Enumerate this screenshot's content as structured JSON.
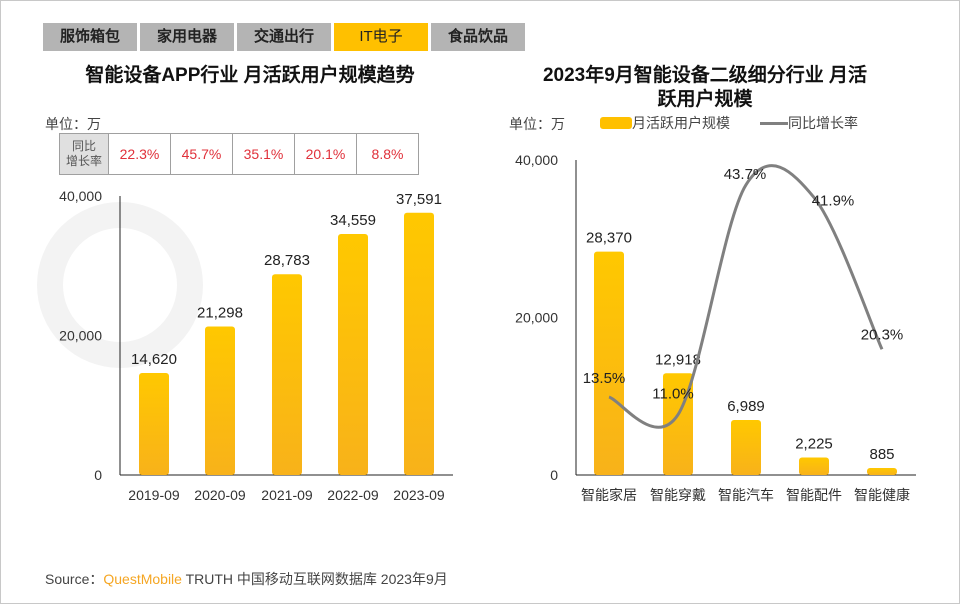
{
  "tabs": [
    {
      "label": "服饰箱包",
      "active": false
    },
    {
      "label": "家用电器",
      "active": false
    },
    {
      "label": "交通出行",
      "active": false
    },
    {
      "label": "IT电子",
      "active": true
    },
    {
      "label": "食品饮品",
      "active": false
    }
  ],
  "watermark": "QUESTMOBILE",
  "colors": {
    "bar": "#ffc000",
    "line": "#808080",
    "active_tab": "#ffc000",
    "yoy_text": "#e0303a",
    "brand": "#f5a623"
  },
  "source": {
    "prefix": "Source：",
    "brand": "QuestMobile",
    "rest": " TRUTH 中国移动互联网数据库 2023年9月"
  },
  "chart_data": [
    {
      "type": "bar",
      "title": "智能设备APP行业 月活跃用户规模趋势",
      "unit": "单位：万",
      "categories": [
        "2019-09",
        "2020-09",
        "2021-09",
        "2022-09",
        "2023-09"
      ],
      "values": [
        14620,
        21298,
        28783,
        34559,
        37591
      ],
      "value_labels": [
        "14,620",
        "21,298",
        "28,783",
        "34,559",
        "37,591"
      ],
      "ylim": [
        0,
        40000
      ],
      "yticks": [
        "0",
        "20,000",
        "40,000"
      ],
      "yoy_table": {
        "header": "同比增长率",
        "header_lines": [
          "同比",
          "增长率"
        ],
        "values": [
          "22.3%",
          "45.7%",
          "35.1%",
          "20.1%",
          "8.8%"
        ]
      },
      "grid": false
    },
    {
      "type": "bar+line",
      "title_lines": [
        "2023年9月智能设备二级细分行业 月活",
        "跃用户规模"
      ],
      "unit": "单位：万",
      "categories": [
        "智能家居",
        "智能穿戴",
        "智能汽车",
        "智能配件",
        "智能健康"
      ],
      "series": [
        {
          "name": "月活跃用户规模",
          "type": "bar",
          "values": [
            28370,
            12918,
            6989,
            2225,
            885
          ],
          "labels": [
            "28,370",
            "12,918",
            "6,989",
            "2,225",
            "885"
          ]
        },
        {
          "name": "同比增长率",
          "type": "line",
          "values": [
            13.5,
            11.0,
            43.7,
            41.9,
            20.3
          ],
          "labels": [
            "13.5%",
            "11.0%",
            "43.7%",
            "41.9%",
            "20.3%"
          ]
        }
      ],
      "ylim": [
        0,
        40000
      ],
      "yticks": [
        "0",
        "20,000",
        "40,000"
      ],
      "legend": "top",
      "grid": false
    }
  ]
}
